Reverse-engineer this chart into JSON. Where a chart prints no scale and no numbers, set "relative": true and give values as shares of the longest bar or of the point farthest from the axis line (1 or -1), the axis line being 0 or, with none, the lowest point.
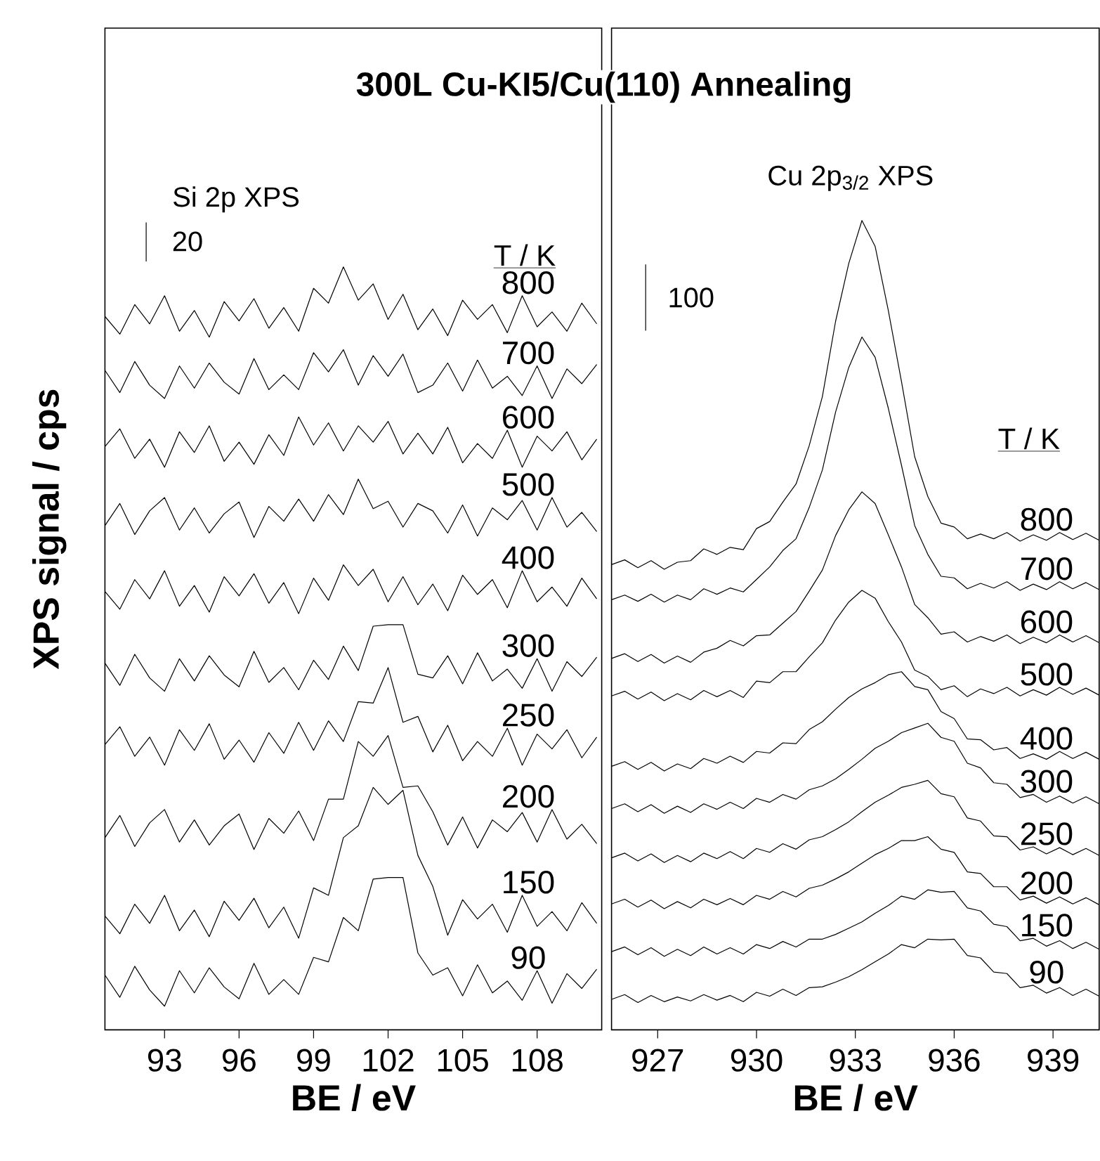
{
  "chart_data": [
    {
      "type": "line",
      "title": "300L Cu-KI5/Cu(110) Annealing",
      "subtitle": "Si 2p XPS",
      "xlabel": "BE / eV",
      "ylabel": "XPS signal / cps",
      "legend_title": "T / K",
      "annotations": [
        "20"
      ],
      "relative": true,
      "marker": "none",
      "x": [
        90.6,
        91.2,
        91.8,
        92.4,
        93.0,
        93.6,
        94.2,
        94.8,
        95.4,
        96.0,
        96.6,
        97.2,
        97.8,
        98.4,
        99.0,
        99.6,
        100.2,
        100.8,
        101.4,
        102.0,
        102.6,
        103.2,
        103.8,
        104.4,
        105.0,
        105.6,
        106.2,
        106.8,
        107.4,
        108.0,
        108.6,
        109.2,
        109.8,
        110.4
      ],
      "xlim": [
        90.6,
        110.6
      ],
      "xticks": [
        93,
        96,
        99,
        102,
        105,
        108
      ],
      "series": [
        {
          "name": "800",
          "color": "#000000",
          "values": [
            0.933,
            0.909,
            0.949,
            0.923,
            0.961,
            0.913,
            0.941,
            0.905,
            0.953,
            0.927,
            0.957,
            0.917,
            0.945,
            0.913,
            0.971,
            0.951,
            1.0,
            0.955,
            0.977,
            0.929,
            0.963,
            0.915,
            0.943,
            0.907,
            0.955,
            0.929,
            0.949,
            0.911,
            0.961,
            0.919,
            0.939,
            0.913,
            0.951,
            0.923
          ]
        },
        {
          "name": "700",
          "color": "#000000",
          "values": [
            0.86,
            0.83,
            0.872,
            0.84,
            0.822,
            0.866,
            0.836,
            0.87,
            0.844,
            0.828,
            0.876,
            0.834,
            0.854,
            0.834,
            0.884,
            0.858,
            0.888,
            0.84,
            0.88,
            0.852,
            0.882,
            0.83,
            0.84,
            0.87,
            0.832,
            0.874,
            0.836,
            0.852,
            0.826,
            0.866,
            0.822,
            0.862,
            0.842,
            0.868
          ]
        },
        {
          "name": "600",
          "color": "#000000",
          "values": [
            0.757,
            0.781,
            0.741,
            0.767,
            0.729,
            0.777,
            0.749,
            0.785,
            0.737,
            0.763,
            0.733,
            0.773,
            0.745,
            0.797,
            0.759,
            0.789,
            0.751,
            0.785,
            0.763,
            0.791,
            0.747,
            0.775,
            0.747,
            0.783,
            0.735,
            0.761,
            0.741,
            0.779,
            0.729,
            0.771,
            0.751,
            0.777,
            0.739,
            0.767
          ]
        },
        {
          "name": "500",
          "color": "#000000",
          "values": [
            0.65,
            0.68,
            0.638,
            0.67,
            0.688,
            0.644,
            0.674,
            0.64,
            0.666,
            0.682,
            0.634,
            0.676,
            0.656,
            0.686,
            0.656,
            0.692,
            0.665,
            0.713,
            0.673,
            0.683,
            0.648,
            0.68,
            0.67,
            0.64,
            0.678,
            0.636,
            0.674,
            0.658,
            0.684,
            0.644,
            0.688,
            0.648,
            0.668,
            0.642
          ]
        },
        {
          "name": "400",
          "color": "#000000",
          "values": [
            0.561,
            0.537,
            0.577,
            0.551,
            0.589,
            0.541,
            0.569,
            0.533,
            0.581,
            0.555,
            0.585,
            0.545,
            0.573,
            0.531,
            0.579,
            0.549,
            0.597,
            0.569,
            0.591,
            0.547,
            0.581,
            0.543,
            0.571,
            0.535,
            0.583,
            0.557,
            0.577,
            0.539,
            0.589,
            0.547,
            0.567,
            0.541,
            0.579,
            0.551
          ]
        },
        {
          "name": "300",
          "color": "#000000",
          "values": [
            0.464,
            0.434,
            0.476,
            0.444,
            0.426,
            0.47,
            0.44,
            0.474,
            0.448,
            0.432,
            0.48,
            0.438,
            0.458,
            0.428,
            0.468,
            0.442,
            0.487,
            0.454,
            0.514,
            0.516,
            0.516,
            0.449,
            0.444,
            0.474,
            0.436,
            0.478,
            0.44,
            0.456,
            0.43,
            0.47,
            0.426,
            0.466,
            0.446,
            0.472
          ]
        },
        {
          "name": "250",
          "color": "#000000",
          "values": [
            0.354,
            0.378,
            0.338,
            0.364,
            0.326,
            0.374,
            0.346,
            0.382,
            0.334,
            0.36,
            0.33,
            0.37,
            0.342,
            0.384,
            0.346,
            0.386,
            0.358,
            0.412,
            0.41,
            0.458,
            0.384,
            0.392,
            0.344,
            0.38,
            0.332,
            0.358,
            0.338,
            0.376,
            0.326,
            0.368,
            0.348,
            0.374,
            0.336,
            0.364
          ]
        },
        {
          "name": "200",
          "color": "#000000",
          "values": [
            0.228,
            0.258,
            0.216,
            0.248,
            0.266,
            0.222,
            0.252,
            0.218,
            0.244,
            0.26,
            0.212,
            0.254,
            0.234,
            0.264,
            0.224,
            0.28,
            0.28,
            0.358,
            0.338,
            0.366,
            0.296,
            0.298,
            0.263,
            0.218,
            0.256,
            0.214,
            0.252,
            0.236,
            0.262,
            0.222,
            0.266,
            0.226,
            0.246,
            0.22
          ]
        },
        {
          "name": "150",
          "color": "#000000",
          "values": [
            0.122,
            0.098,
            0.138,
            0.112,
            0.15,
            0.102,
            0.13,
            0.094,
            0.142,
            0.116,
            0.146,
            0.106,
            0.134,
            0.092,
            0.16,
            0.15,
            0.228,
            0.244,
            0.296,
            0.273,
            0.292,
            0.204,
            0.162,
            0.096,
            0.144,
            0.118,
            0.138,
            0.1,
            0.15,
            0.108,
            0.128,
            0.102,
            0.14,
            0.112
          ]
        },
        {
          "name": "90",
          "color": "#000000",
          "values": [
            0.042,
            0.012,
            0.054,
            0.022,
            0.0,
            0.048,
            0.018,
            0.052,
            0.026,
            0.01,
            0.058,
            0.016,
            0.036,
            0.016,
            0.066,
            0.06,
            0.12,
            0.102,
            0.172,
            0.174,
            0.174,
            0.072,
            0.042,
            0.052,
            0.014,
            0.056,
            0.018,
            0.034,
            0.008,
            0.048,
            0.004,
            0.044,
            0.024,
            0.05
          ]
        }
      ]
    },
    {
      "type": "line",
      "subtitle": "Cu 2p$_{3/2}$ XPS",
      "xlabel": "BE / eV",
      "legend_title": "T / K",
      "annotations": [
        "100"
      ],
      "relative": true,
      "marker": "none",
      "x": [
        925.6,
        926.0,
        926.4,
        926.8,
        927.2,
        927.6,
        928.0,
        928.4,
        928.8,
        929.2,
        929.6,
        930.0,
        930.4,
        930.8,
        931.2,
        931.6,
        932.0,
        932.4,
        932.8,
        933.2,
        933.6,
        934.0,
        934.4,
        934.8,
        935.2,
        935.6,
        936.0,
        936.4,
        936.8,
        937.2,
        937.6,
        938.0,
        938.4,
        938.8,
        939.2,
        939.6,
        940.0,
        940.4
      ],
      "xlim": [
        925.6,
        940.4
      ],
      "xticks": [
        927,
        930,
        933,
        936,
        939
      ],
      "series": [
        {
          "name": "800",
          "color": "#000000",
          "values": [
            0.56,
            0.566,
            0.556,
            0.565,
            0.554,
            0.563,
            0.565,
            0.58,
            0.573,
            0.582,
            0.579,
            0.606,
            0.615,
            0.64,
            0.663,
            0.712,
            0.775,
            0.871,
            0.945,
            1.0,
            0.967,
            0.885,
            0.794,
            0.698,
            0.647,
            0.613,
            0.608,
            0.593,
            0.599,
            0.593,
            0.601,
            0.59,
            0.598,
            0.591,
            0.601,
            0.592,
            0.6,
            0.591
          ]
        },
        {
          "name": "700",
          "color": "#000000",
          "values": [
            0.515,
            0.521,
            0.513,
            0.522,
            0.512,
            0.521,
            0.515,
            0.529,
            0.522,
            0.53,
            0.525,
            0.541,
            0.557,
            0.578,
            0.593,
            0.633,
            0.681,
            0.755,
            0.812,
            0.851,
            0.825,
            0.76,
            0.687,
            0.61,
            0.573,
            0.545,
            0.543,
            0.529,
            0.536,
            0.53,
            0.538,
            0.527,
            0.535,
            0.528,
            0.538,
            0.529,
            0.537,
            0.528
          ]
        },
        {
          "name": "600",
          "color": "#000000",
          "values": [
            0.44,
            0.446,
            0.436,
            0.445,
            0.434,
            0.443,
            0.435,
            0.448,
            0.453,
            0.463,
            0.456,
            0.469,
            0.47,
            0.485,
            0.5,
            0.526,
            0.553,
            0.597,
            0.63,
            0.653,
            0.638,
            0.598,
            0.557,
            0.509,
            0.492,
            0.471,
            0.474,
            0.461,
            0.468,
            0.462,
            0.47,
            0.459,
            0.467,
            0.46,
            0.47,
            0.461,
            0.469,
            0.46
          ]
        },
        {
          "name": "500",
          "color": "#000000",
          "values": [
            0.392,
            0.398,
            0.388,
            0.397,
            0.386,
            0.395,
            0.387,
            0.399,
            0.391,
            0.399,
            0.39,
            0.411,
            0.409,
            0.423,
            0.423,
            0.442,
            0.46,
            0.489,
            0.512,
            0.527,
            0.517,
            0.487,
            0.461,
            0.425,
            0.417,
            0.4,
            0.405,
            0.391,
            0.401,
            0.395,
            0.403,
            0.392,
            0.4,
            0.393,
            0.403,
            0.394,
            0.402,
            0.393
          ]
        },
        {
          "name": "400",
          "color": "#000000",
          "values": [
            0.302,
            0.308,
            0.298,
            0.307,
            0.296,
            0.305,
            0.299,
            0.312,
            0.306,
            0.315,
            0.307,
            0.321,
            0.319,
            0.332,
            0.331,
            0.349,
            0.359,
            0.375,
            0.39,
            0.401,
            0.409,
            0.419,
            0.423,
            0.404,
            0.4,
            0.372,
            0.363,
            0.337,
            0.336,
            0.323,
            0.326,
            0.312,
            0.318,
            0.311,
            0.321,
            0.312,
            0.32,
            0.311
          ]
        },
        {
          "name": "300",
          "color": "#000000",
          "values": [
            0.248,
            0.254,
            0.244,
            0.253,
            0.242,
            0.251,
            0.243,
            0.254,
            0.247,
            0.256,
            0.248,
            0.261,
            0.256,
            0.266,
            0.26,
            0.272,
            0.277,
            0.286,
            0.298,
            0.311,
            0.325,
            0.334,
            0.345,
            0.351,
            0.357,
            0.339,
            0.334,
            0.306,
            0.3,
            0.281,
            0.279,
            0.262,
            0.266,
            0.256,
            0.264,
            0.255,
            0.263,
            0.254
          ]
        },
        {
          "name": "250",
          "color": "#000000",
          "values": [
            0.185,
            0.191,
            0.181,
            0.19,
            0.179,
            0.188,
            0.18,
            0.191,
            0.184,
            0.193,
            0.184,
            0.197,
            0.192,
            0.203,
            0.196,
            0.208,
            0.212,
            0.221,
            0.231,
            0.244,
            0.256,
            0.265,
            0.275,
            0.279,
            0.284,
            0.267,
            0.263,
            0.236,
            0.232,
            0.213,
            0.212,
            0.195,
            0.199,
            0.19,
            0.198,
            0.189,
            0.197,
            0.188
          ]
        },
        {
          "name": "200",
          "color": "#000000",
          "values": [
            0.126,
            0.132,
            0.122,
            0.131,
            0.12,
            0.129,
            0.121,
            0.132,
            0.125,
            0.133,
            0.125,
            0.137,
            0.132,
            0.142,
            0.135,
            0.146,
            0.15,
            0.158,
            0.167,
            0.178,
            0.189,
            0.197,
            0.207,
            0.207,
            0.212,
            0.196,
            0.192,
            0.167,
            0.165,
            0.148,
            0.148,
            0.131,
            0.136,
            0.127,
            0.135,
            0.126,
            0.134,
            0.125
          ]
        },
        {
          "name": "150",
          "color": "#000000",
          "values": [
            0.065,
            0.071,
            0.061,
            0.07,
            0.059,
            0.068,
            0.06,
            0.071,
            0.062,
            0.07,
            0.062,
            0.074,
            0.069,
            0.078,
            0.071,
            0.081,
            0.081,
            0.087,
            0.095,
            0.103,
            0.114,
            0.124,
            0.136,
            0.132,
            0.144,
            0.141,
            0.142,
            0.121,
            0.117,
            0.1,
            0.097,
            0.079,
            0.082,
            0.072,
            0.079,
            0.069,
            0.077,
            0.068
          ]
        },
        {
          "name": "90",
          "color": "#000000",
          "values": [
            0.004,
            0.01,
            0.0,
            0.009,
            0.001,
            0.007,
            0.002,
            0.01,
            0.003,
            0.009,
            0.001,
            0.013,
            0.008,
            0.017,
            0.009,
            0.019,
            0.02,
            0.026,
            0.033,
            0.042,
            0.052,
            0.062,
            0.074,
            0.07,
            0.081,
            0.08,
            0.081,
            0.06,
            0.057,
            0.039,
            0.037,
            0.019,
            0.022,
            0.012,
            0.019,
            0.009,
            0.017,
            0.008
          ]
        }
      ]
    }
  ]
}
